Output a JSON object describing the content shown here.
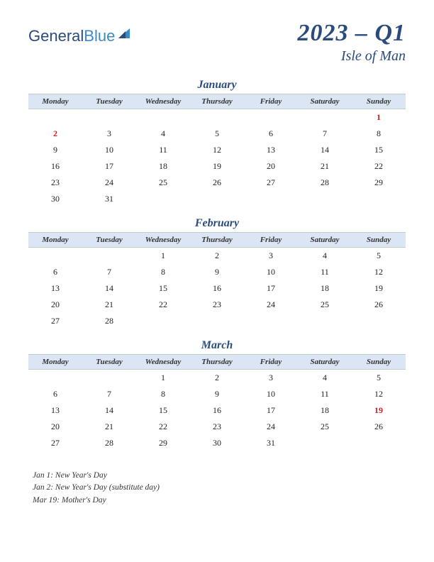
{
  "logo": {
    "part1": "General",
    "part2": "Blue"
  },
  "title": {
    "quarter": "2023 – Q1",
    "region": "Isle of Man"
  },
  "colors": {
    "header_bg": "#dbe5f3",
    "accent": "#2a4b7c",
    "holiday": "#c52020",
    "text": "#222222",
    "background": "#ffffff",
    "logo_blue": "#3a8ac4"
  },
  "day_headers": [
    "Monday",
    "Tuesday",
    "Wednesday",
    "Thursday",
    "Friday",
    "Saturday",
    "Sunday"
  ],
  "months": [
    {
      "name": "January",
      "weeks": [
        [
          "",
          "",
          "",
          "",
          "",
          "",
          {
            "d": "1",
            "h": true
          }
        ],
        [
          {
            "d": "2",
            "h": true
          },
          "3",
          "4",
          "5",
          "6",
          "7",
          "8"
        ],
        [
          "9",
          "10",
          "11",
          "12",
          "13",
          "14",
          "15"
        ],
        [
          "16",
          "17",
          "18",
          "19",
          "20",
          "21",
          "22"
        ],
        [
          "23",
          "24",
          "25",
          "26",
          "27",
          "28",
          "29"
        ],
        [
          "30",
          "31",
          "",
          "",
          "",
          "",
          ""
        ]
      ]
    },
    {
      "name": "February",
      "weeks": [
        [
          "",
          "",
          "1",
          "2",
          "3",
          "4",
          "5"
        ],
        [
          "6",
          "7",
          "8",
          "9",
          "10",
          "11",
          "12"
        ],
        [
          "13",
          "14",
          "15",
          "16",
          "17",
          "18",
          "19"
        ],
        [
          "20",
          "21",
          "22",
          "23",
          "24",
          "25",
          "26"
        ],
        [
          "27",
          "28",
          "",
          "",
          "",
          "",
          ""
        ]
      ]
    },
    {
      "name": "March",
      "weeks": [
        [
          "",
          "",
          "1",
          "2",
          "3",
          "4",
          "5"
        ],
        [
          "6",
          "7",
          "8",
          "9",
          "10",
          "11",
          "12"
        ],
        [
          "13",
          "14",
          "15",
          "16",
          "17",
          "18",
          {
            "d": "19",
            "h": true
          }
        ],
        [
          "20",
          "21",
          "22",
          "23",
          "24",
          "25",
          "26"
        ],
        [
          "27",
          "28",
          "29",
          "30",
          "31",
          "",
          ""
        ]
      ]
    }
  ],
  "holidays": [
    "Jan 1: New Year's Day",
    "Jan 2: New Year's Day (substitute day)",
    "Mar 19: Mother's Day"
  ]
}
